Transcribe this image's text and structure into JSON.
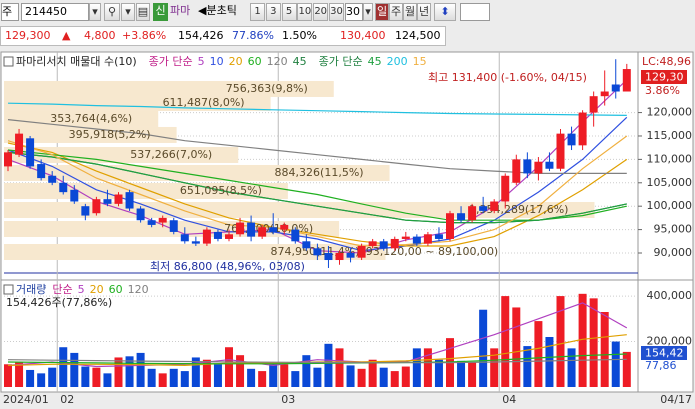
{
  "toolbar": {
    "market": "주",
    "code": "214450",
    "new_badge": "신",
    "name": "파마",
    "period_nav": "◀분초틱",
    "intervals": [
      "1",
      "3",
      "5",
      "10",
      "20",
      "30"
    ],
    "interval_value": "30",
    "units": [
      "일",
      "주",
      "월",
      "년"
    ]
  },
  "quote": {
    "price": "129,300",
    "arrow": "▲",
    "change": "4,800",
    "rate": "+3.86%",
    "volume": "154,426",
    "volume_ratio": "77.86%",
    "turnover": "1.50%",
    "high": "130,400",
    "low": "124,500"
  },
  "chart_data": [
    {
      "type": "candlestick",
      "title": "파마리서치 매물대 수(10)",
      "categories": [
        "2024/01",
        null,
        null,
        null,
        null,
        "02",
        null,
        null,
        null,
        null,
        null,
        null,
        null,
        null,
        null,
        null,
        null,
        null,
        null,
        null,
        null,
        null,
        null,
        null,
        null,
        "03",
        null,
        null,
        null,
        null,
        null,
        null,
        null,
        null,
        null,
        null,
        null,
        null,
        null,
        null,
        null,
        null,
        null,
        null,
        null,
        "04",
        null,
        null,
        null,
        null,
        null,
        null,
        null,
        null,
        null,
        null,
        "04/17"
      ],
      "open": [
        108500,
        111000,
        114500,
        109000,
        106500,
        105000,
        103500,
        100000,
        98500,
        101500,
        100500,
        103000,
        99500,
        97000,
        96500,
        97000,
        94000,
        92500,
        92000,
        94500,
        93000,
        94000,
        96500,
        93500,
        95500,
        95000,
        95000,
        92500,
        91000,
        90000,
        88500,
        90000,
        89000,
        91500,
        92500,
        91000,
        93000,
        93500,
        92000,
        94000,
        93000,
        98500,
        97000,
        100000,
        99000,
        101000,
        105000,
        110000,
        107000,
        109500,
        108000,
        115500,
        113000,
        120000,
        123500,
        126000,
        124500
      ],
      "high": [
        112000,
        116500,
        115000,
        110000,
        107500,
        106500,
        104500,
        100500,
        102000,
        103500,
        103000,
        103500,
        100000,
        97500,
        98000,
        97500,
        95500,
        93500,
        95500,
        95000,
        95000,
        97500,
        98000,
        96000,
        98500,
        96500,
        95500,
        94000,
        92000,
        91500,
        90500,
        91000,
        92000,
        93000,
        93000,
        93500,
        94500,
        94000,
        94500,
        95500,
        99000,
        100000,
        100500,
        102000,
        101500,
        107000,
        111000,
        111500,
        110500,
        111500,
        116500,
        117000,
        120500,
        124500,
        129000,
        131400,
        130400
      ],
      "low": [
        107500,
        110500,
        108000,
        105500,
        104500,
        102500,
        100500,
        97000,
        98000,
        100000,
        100000,
        99000,
        96500,
        95500,
        95500,
        94000,
        92000,
        91500,
        91500,
        92500,
        92500,
        93500,
        92500,
        93000,
        94000,
        94000,
        92000,
        90500,
        88500,
        86800,
        87500,
        88000,
        88500,
        91000,
        90500,
        90500,
        92500,
        91500,
        91500,
        92500,
        92500,
        96500,
        96500,
        98500,
        98500,
        99500,
        104500,
        106000,
        105500,
        107500,
        107500,
        112000,
        112000,
        117000,
        121500,
        123000,
        124500
      ],
      "close": [
        111500,
        115500,
        108500,
        106000,
        105000,
        103000,
        101000,
        98000,
        101500,
        100500,
        102500,
        99500,
        97000,
        96000,
        97500,
        94500,
        92500,
        92000,
        95000,
        93000,
        94000,
        96500,
        93500,
        95500,
        94500,
        96000,
        92500,
        91000,
        89500,
        88500,
        90000,
        89000,
        91500,
        92500,
        91000,
        93000,
        93500,
        92000,
        94000,
        93000,
        98500,
        97000,
        100000,
        99000,
        101000,
        106500,
        110000,
        107000,
        109500,
        108000,
        115500,
        113000,
        120000,
        123500,
        124500,
        124500,
        129300
      ],
      "up_color": "#ee1c25",
      "down_color": "#0a48d6",
      "ylim": [
        85300,
        132300
      ],
      "yticks": [
        {
          "value": 90000,
          "label": "90,000"
        },
        {
          "value": 95000,
          "label": "95,000"
        },
        {
          "value": 100000,
          "label": "100,000"
        },
        {
          "value": 105000,
          "label": "105,000"
        },
        {
          "value": 110000,
          "label": "110,000"
        },
        {
          "value": 115000,
          "label": "115,000"
        },
        {
          "value": 120000,
          "label": "120,000"
        }
      ],
      "ma_x": [
        0,
        4,
        8,
        12,
        16,
        20,
        24,
        28,
        32,
        36,
        40,
        44,
        48,
        52,
        56
      ],
      "ma_groups": [
        {
          "label": "종가 단순",
          "color": "#c0208a",
          "series": [
            {
              "name": "5",
              "color": "#b040c0",
              "values": [
                110000,
                106500,
                101000,
                98000,
                94000,
                94500,
                95000,
                90500,
                90000,
                92800,
                94500,
                100000,
                108500,
                118000,
                127000
              ]
            },
            {
              "name": "10",
              "color": "#3050e0",
              "values": [
                112000,
                108500,
                103500,
                100500,
                97000,
                94500,
                94500,
                93000,
                90500,
                91500,
                93000,
                97000,
                103000,
                110000,
                119000
              ]
            },
            {
              "name": "20",
              "color": "#e0a000",
              "values": [
                113500,
                111500,
                107500,
                104000,
                100500,
                97500,
                95500,
                94000,
                92500,
                91500,
                91500,
                93500,
                98000,
                103500,
                110000
              ]
            },
            {
              "name": "60",
              "color": "#20b020",
              "values": [
                112000,
                111000,
                110000,
                108500,
                107000,
                105500,
                104000,
                102500,
                100500,
                98500,
                97000,
                97000,
                97000,
                98000,
                100000
              ]
            },
            {
              "name": "120",
              "color": "#808080",
              "values": [
                118500,
                117500,
                116500,
                115500,
                114000,
                113000,
                112000,
                111000,
                110000,
                109000,
                108000,
                107500,
                107000,
                107000,
                107000
              ]
            },
            {
              "name": "45",
              "color": "#208040",
              "values": [
                111500,
                110500,
                109000,
                107000,
                105000,
                103000,
                101500,
                100000,
                98500,
                97000,
                96500,
                96500,
                97000,
                98500,
                100500
              ]
            }
          ]
        },
        {
          "label": "종가 단순",
          "color": "#208040",
          "series": [
            {
              "name": "45",
              "color": "#20a040",
              "values": [
                111500,
                110500,
                109000,
                107000,
                105000,
                103000,
                101500,
                100000,
                98500,
                97000,
                96500,
                96500,
                97000,
                98500,
                100500
              ]
            },
            {
              "name": "200",
              "color": "#20c0e0",
              "values": [
                122000,
                121800,
                121500,
                121300,
                121000,
                120800,
                120600,
                120400,
                120200,
                120000,
                119800,
                119700,
                119600,
                119500,
                119400
              ]
            },
            {
              "name": "15",
              "color": "#f0b040",
              "values": [
                114000,
                111000,
                106000,
                102500,
                99000,
                96000,
                95500,
                93500,
                91500,
                91800,
                92500,
                95000,
                100000,
                108000,
                115000
              ]
            }
          ]
        }
      ],
      "volume_profile": {
        "color": "#f7e8cf",
        "levels": [
          125043,
          122051,
          118632,
          115214,
          110940,
          107094,
          103248,
          99188,
          95128,
          90214
        ],
        "values": [
          756363,
          611487,
          353764,
          395918,
          537266,
          884326,
          651095,
          1354289,
          768600,
          874950
        ],
        "value_labels": [
          "756,363(9,8%)",
          "611,487(8,0%)",
          "353,764(4,6%)",
          "395,918(5,2%)",
          "537,266(7,0%)",
          "884,326(11,5%)",
          "651,095(8,5%)",
          "1,354,289(17,6%)",
          "768,600(10,0%)",
          "874,950(11,4%)"
        ],
        "range_label": "(93,120,00 ~ 89,100,00)"
      },
      "high_label": "최고 131,400 (-1.60%, 04/15)",
      "low_label": "최저 86,800 (48,96%, 03/08)",
      "lc_label": "LC:48,96",
      "last_label": "129,30",
      "last_rate": "3.86%"
    },
    {
      "type": "bar",
      "title": "거래량",
      "values": [
        100000,
        110000,
        75000,
        60000,
        85000,
        175000,
        150000,
        90000,
        85000,
        60000,
        130000,
        135000,
        150000,
        80000,
        60000,
        80000,
        70000,
        130000,
        120000,
        100000,
        175000,
        140000,
        80000,
        70000,
        110000,
        100000,
        70000,
        140000,
        85000,
        190000,
        170000,
        95000,
        80000,
        120000,
        85000,
        70000,
        90000,
        170000,
        170000,
        120000,
        215000,
        115000,
        110000,
        340000,
        170000,
        400000,
        350000,
        180000,
        290000,
        220000,
        400000,
        170000,
        410000,
        390000,
        330000,
        200000,
        154426
      ],
      "ylim": [
        0,
        440000
      ],
      "yticks": [
        {
          "value": 200000,
          "label": "200,000"
        },
        {
          "value": 400000,
          "label": "400,000"
        }
      ],
      "ma_label": "단순",
      "ma_label_color": "#c0208a",
      "series": [
        {
          "name": "5",
          "color": "#b040c0",
          "values": [
            95000,
            110000,
            90000,
            95000,
            100000,
            120000,
            95000,
            120000,
            110000,
            110000,
            170000,
            230000,
            300000,
            370000,
            260000
          ]
        },
        {
          "name": "20",
          "color": "#e0a000",
          "values": [
            95000,
            100000,
            100000,
            98000,
            95000,
            105000,
            105000,
            110000,
            110000,
            115000,
            125000,
            140000,
            170000,
            210000,
            230000
          ]
        },
        {
          "name": "60",
          "color": "#20b020",
          "values": [
            110000,
            108000,
            106000,
            104000,
            103000,
            102000,
            102000,
            104000,
            106000,
            108000,
            110000,
            118000,
            128000,
            138000,
            145000
          ]
        },
        {
          "name": "120",
          "color": "#808080",
          "values": [
            120000,
            118000,
            116000,
            114000,
            112000,
            110000,
            109000,
            108000,
            107000,
            107000,
            107000,
            110000,
            114000,
            118000,
            122000
          ]
        }
      ],
      "status": "154,426주(77,86%)",
      "last_label": "154,42",
      "last_rate": "77,86"
    }
  ]
}
